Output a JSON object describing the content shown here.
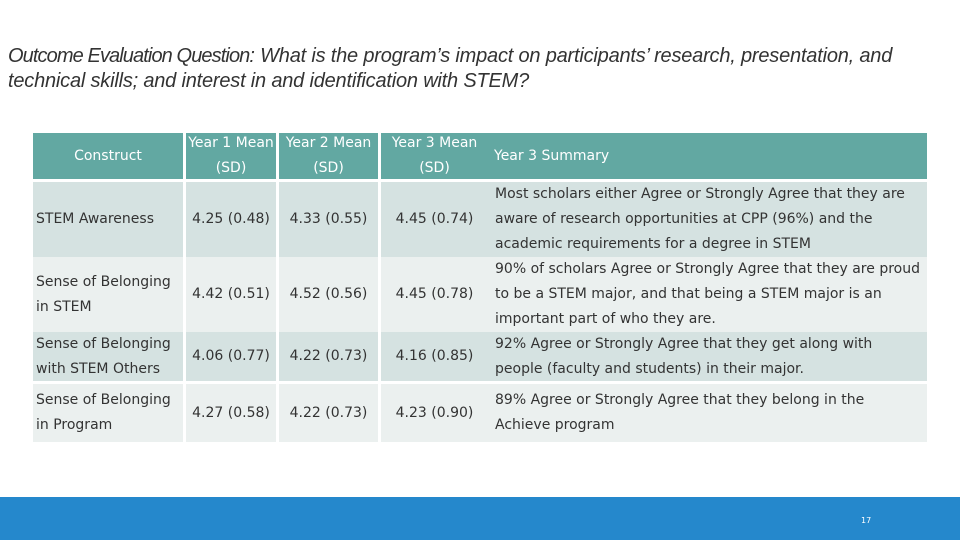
{
  "title": {
    "lead": "Outcome Evaluation Question",
    "text": ": What is the program’s impact on participants’ research, presentation, and technical skills; and interest in and identification with STEM?"
  },
  "table": {
    "headers": {
      "construct": "Construct",
      "year1": "Year 1 Mean (SD)",
      "year2": "Year 2 Mean (SD)",
      "year3": "Year 3 Mean (SD)",
      "summary": "Year 3 Summary"
    },
    "rows": [
      {
        "construct": "STEM Awareness",
        "year1": "4.25 (0.48)",
        "year2": "4.33 (0.55)",
        "year3": "4.45 (0.74)",
        "summary": "Most scholars either Agree or Strongly Agree that they are aware of research opportunities at CPP (96%) and the academic requirements for a degree in STEM"
      },
      {
        "construct": "Sense of Belonging in STEM",
        "year1": "4.42 (0.51)",
        "year2": "4.52 (0.56)",
        "year3": "4.45 (0.78)",
        "summary": "90% of scholars Agree or Strongly Agree that they are proud to be a STEM major, and that being a STEM major is an important part of who they are."
      },
      {
        "construct": "Sense of Belonging with STEM Others",
        "year1": "4.06 (0.77)",
        "year2": "4.22 (0.73)",
        "year3": "4.16 (0.85)",
        "summary": "92% Agree or Strongly Agree that they get along with people (faculty and students) in their major."
      },
      {
        "construct": "Sense of Belonging in Program",
        "year1": "4.27 (0.58)",
        "year2": "4.22 (0.73)",
        "year3": "4.23 (0.90)",
        "summary": "89% Agree or Strongly Agree that they belong in the Achieve program"
      }
    ]
  },
  "footer": {
    "page_number": "17"
  }
}
